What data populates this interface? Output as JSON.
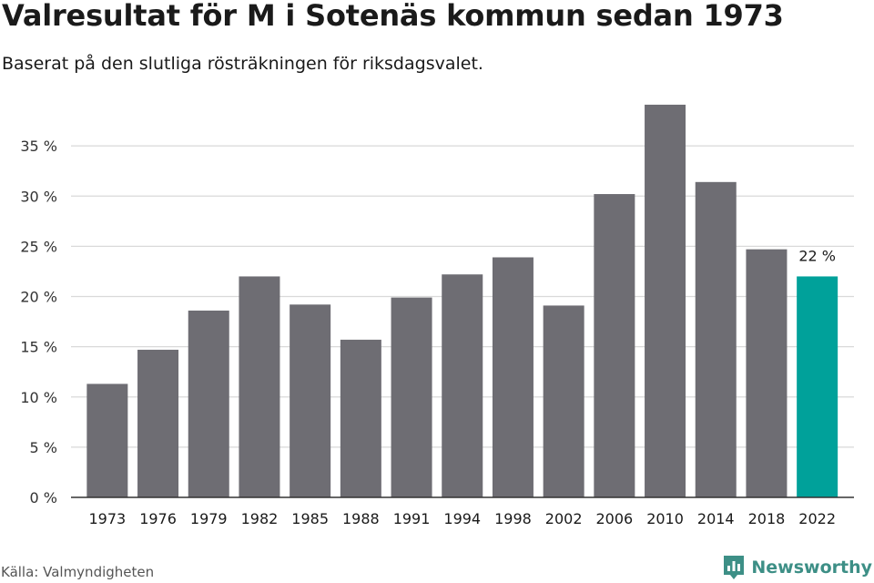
{
  "header": {
    "title": "Valresultat för M i Sotenäs kommun sedan 1973",
    "subtitle": "Baserat på den slutliga rösträkningen för riksdagsvalet."
  },
  "footer": {
    "source": "Källa: Valmyndigheten",
    "brand": "Newsworthy",
    "brand_icon": "newsworthy-logo-icon"
  },
  "colors": {
    "bar": "#6e6d73",
    "highlight": "#00a19a",
    "brand": "#3d8f86",
    "grid": "#d9d9d9",
    "axis": "#333333"
  },
  "chart_data": {
    "type": "bar",
    "categories": [
      "1973",
      "1976",
      "1979",
      "1982",
      "1985",
      "1988",
      "1991",
      "1994",
      "1998",
      "2002",
      "2006",
      "2010",
      "2014",
      "2018",
      "2022"
    ],
    "values": [
      11.3,
      14.7,
      18.6,
      22.0,
      19.2,
      15.7,
      19.9,
      22.2,
      23.9,
      19.1,
      30.2,
      39.1,
      31.4,
      24.7,
      22.0
    ],
    "highlight_index": 14,
    "data_labels": [
      {
        "index": 14,
        "text": "22 %"
      }
    ],
    "y_ticks": [
      0,
      5,
      10,
      15,
      20,
      25,
      30,
      35
    ],
    "y_tick_labels": [
      "0 %",
      "5 %",
      "10 %",
      "15 %",
      "20 %",
      "25 %",
      "30 %",
      "35 %"
    ],
    "ylim": [
      0,
      40
    ],
    "grid": true,
    "legend": "none",
    "xlabel": "",
    "ylabel": ""
  }
}
